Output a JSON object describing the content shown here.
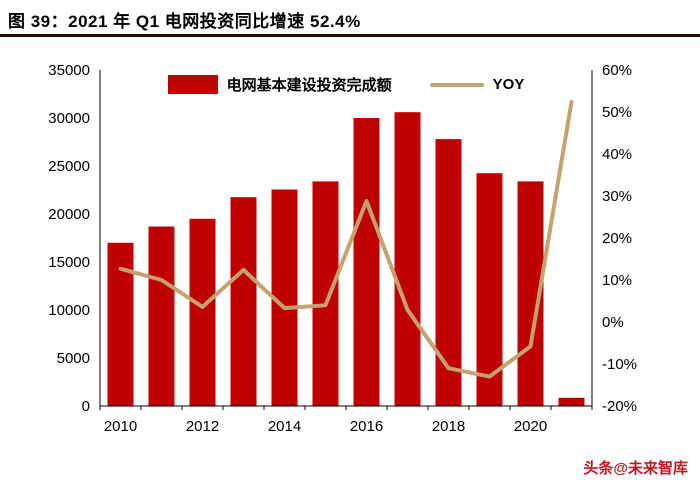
{
  "header": {
    "title": "图 39：2021 年 Q1 电网投资同比增速 52.4%"
  },
  "watermark": "头条@未来智库",
  "colors": {
    "bar": "#C00000",
    "line": "#C5A170",
    "title_rule": "#250A0C",
    "watermark": "#C5161D",
    "axis": "#000000"
  },
  "chart_data": {
    "type": "bar",
    "subtype": "bar+line combo, dual axis",
    "title": "图 39：2021 年 Q1 电网投资同比增速 52.4%",
    "categories": [
      "2010",
      "2011",
      "2012",
      "2013",
      "2014",
      "2015",
      "2016",
      "2017",
      "2018",
      "2019",
      "2020",
      "2021"
    ],
    "x_axis_visible_labels": [
      "2010",
      "2012",
      "2014",
      "2016",
      "2018",
      "2020"
    ],
    "series": [
      {
        "name": "电网基本建设投资完成额",
        "type": "bar",
        "axis": "left",
        "values": [
          17000,
          18700,
          19500,
          21750,
          22550,
          23400,
          30000,
          30600,
          27800,
          24250,
          23400,
          850
        ]
      },
      {
        "name": "YOY",
        "type": "line",
        "axis": "right",
        "values": [
          12.7,
          10.0,
          3.6,
          12.4,
          3.3,
          4.0,
          28.8,
          2.9,
          -11.0,
          -13.0,
          -5.8,
          52.4
        ]
      }
    ],
    "left_axis": {
      "min": 0,
      "max": 35000,
      "step": 5000,
      "tick_labels": [
        "0",
        "5000",
        "10000",
        "15000",
        "20000",
        "25000",
        "30000",
        "35000"
      ]
    },
    "right_axis": {
      "min": -20,
      "max": 60,
      "step": 10,
      "tick_labels": [
        "-20%",
        "-10%",
        "0%",
        "10%",
        "20%",
        "30%",
        "40%",
        "50%",
        "60%"
      ]
    },
    "legend": {
      "position": "top-inside",
      "entries": [
        "电网基本建设投资完成额",
        "YOY"
      ]
    },
    "grid": false
  }
}
